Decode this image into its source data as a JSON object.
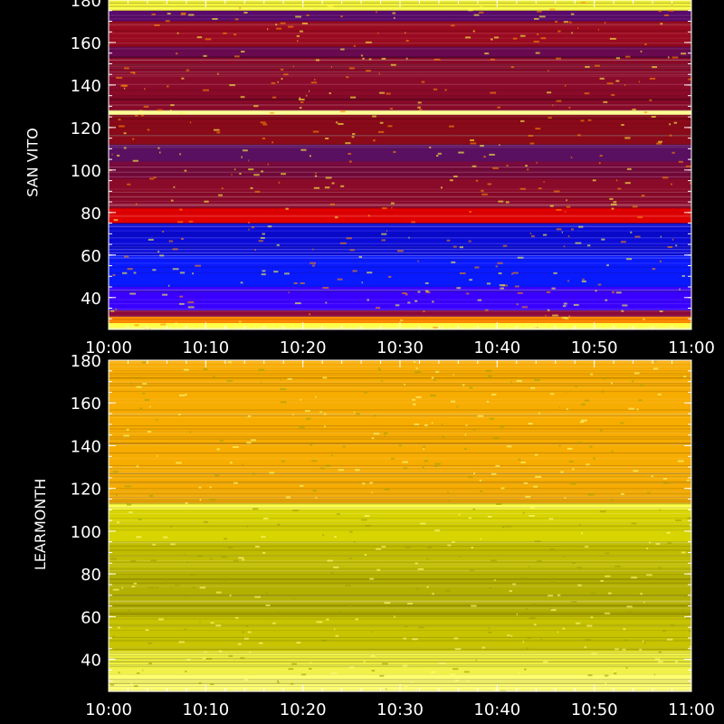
{
  "chart_data": [
    {
      "type": "heatmap",
      "station": "SAN VITO",
      "ylabel": "SAN VITO",
      "x_ticks": [
        "10:00",
        "10:10",
        "10:20",
        "10:30",
        "10:40",
        "10:50",
        "11:00"
      ],
      "x_range": [
        "10:00",
        "11:00"
      ],
      "y_ticks": [
        40,
        60,
        80,
        100,
        120,
        140,
        160,
        180
      ],
      "y_range": [
        25,
        180
      ],
      "bands": [
        {
          "from": 25,
          "to": 28,
          "color": "#ffff40"
        },
        {
          "from": 28,
          "to": 31,
          "color": "#ff8a00"
        },
        {
          "from": 31,
          "to": 34,
          "color": "#8b0a3c"
        },
        {
          "from": 34,
          "to": 45,
          "color": "#3a00ff"
        },
        {
          "from": 45,
          "to": 60,
          "color": "#0a1aff"
        },
        {
          "from": 60,
          "to": 75,
          "color": "#0a0ad8"
        },
        {
          "from": 75,
          "to": 82,
          "color": "#e00000"
        },
        {
          "from": 82,
          "to": 96,
          "color": "#8a0a2a"
        },
        {
          "from": 96,
          "to": 104,
          "color": "#7a0a3e"
        },
        {
          "from": 104,
          "to": 112,
          "color": "#5a1060"
        },
        {
          "from": 112,
          "to": 126,
          "color": "#8a0a1a"
        },
        {
          "from": 126,
          "to": 128,
          "color": "#ffff90"
        },
        {
          "from": 128,
          "to": 153,
          "color": "#8a0a2a"
        },
        {
          "from": 153,
          "to": 158,
          "color": "#6a0a50"
        },
        {
          "from": 158,
          "to": 170,
          "color": "#9a0a20"
        },
        {
          "from": 170,
          "to": 175,
          "color": "#5a0a6a"
        },
        {
          "from": 175,
          "to": 180,
          "color": "#ffff40"
        }
      ]
    },
    {
      "type": "heatmap",
      "station": "LEARMONTH",
      "ylabel": "LEARMONTH",
      "x_ticks": [
        "10:00",
        "10:10",
        "10:20",
        "10:30",
        "10:40",
        "10:50",
        "11:00"
      ],
      "x_range": [
        "10:00",
        "11:00"
      ],
      "y_ticks": [
        40,
        60,
        80,
        100,
        120,
        140,
        160,
        180
      ],
      "y_range": [
        25,
        180
      ],
      "bands": [
        {
          "from": 25,
          "to": 33,
          "color": "#ffff70"
        },
        {
          "from": 33,
          "to": 44,
          "color": "#f0f040"
        },
        {
          "from": 44,
          "to": 60,
          "color": "#c8c400"
        },
        {
          "from": 60,
          "to": 80,
          "color": "#b4b000"
        },
        {
          "from": 80,
          "to": 95,
          "color": "#c0bc00"
        },
        {
          "from": 95,
          "to": 110,
          "color": "#d8d400"
        },
        {
          "from": 110,
          "to": 113,
          "color": "#ffff40"
        },
        {
          "from": 113,
          "to": 120,
          "color": "#f0a800"
        },
        {
          "from": 120,
          "to": 180,
          "color": "#f7ac00"
        }
      ]
    }
  ]
}
